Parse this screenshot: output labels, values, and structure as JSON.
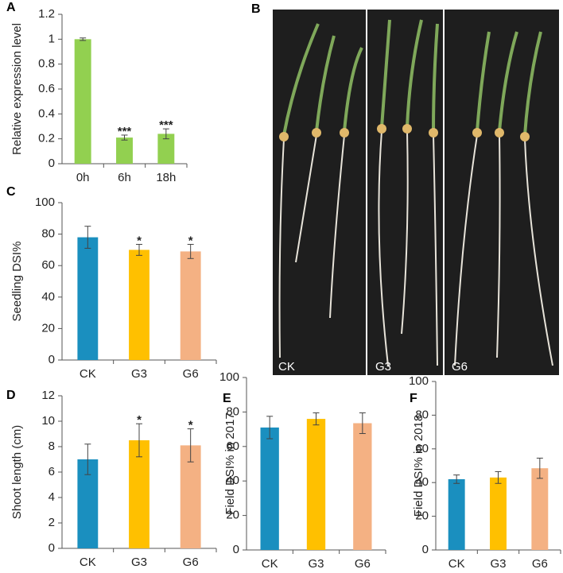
{
  "chart_data": [
    {
      "type": "bar",
      "panel": "A",
      "ylabel": "Relative expression level",
      "categories": [
        "0h",
        "6h",
        "18h"
      ],
      "values": [
        1.0,
        0.21,
        0.24
      ],
      "errors": [
        0.01,
        0.02,
        0.04
      ],
      "colors": [
        "#92d050",
        "#92d050",
        "#92d050"
      ],
      "annotations": [
        null,
        "***",
        "***"
      ],
      "ylim": [
        0,
        1.2
      ],
      "yticks": [
        0,
        0.2,
        0.4,
        0.6,
        0.8,
        1,
        1.2
      ]
    },
    {
      "type": "bar",
      "panel": "C",
      "ylabel": "Seedling DSI%",
      "categories": [
        "CK",
        "G3",
        "G6"
      ],
      "values": [
        78,
        70,
        69
      ],
      "errors": [
        7,
        3.5,
        4.5
      ],
      "colors": [
        "#1a8fbf",
        "#ffc000",
        "#f4b183"
      ],
      "annotations": [
        null,
        "*",
        "*"
      ],
      "ylim": [
        0,
        100
      ],
      "yticks": [
        0,
        20,
        40,
        60,
        80,
        100
      ]
    },
    {
      "type": "bar",
      "panel": "D",
      "ylabel": "Shoot length (cm)",
      "categories": [
        "CK",
        "G3",
        "G6"
      ],
      "values": [
        7.0,
        8.5,
        8.1
      ],
      "errors": [
        1.2,
        1.3,
        1.3
      ],
      "colors": [
        "#1a8fbf",
        "#ffc000",
        "#f4b183"
      ],
      "annotations": [
        null,
        "*",
        "*"
      ],
      "ylim": [
        0,
        12
      ],
      "yticks": [
        0,
        2,
        4,
        6,
        8,
        10,
        12
      ]
    },
    {
      "type": "bar",
      "panel": "E",
      "ylabel": "Field DSI% in 2017",
      "categories": [
        "CK",
        "G3",
        "G6"
      ],
      "values": [
        71,
        76,
        73.5
      ],
      "errors": [
        6.5,
        3.5,
        6
      ],
      "colors": [
        "#1a8fbf",
        "#ffc000",
        "#f4b183"
      ],
      "annotations": [
        null,
        null,
        null
      ],
      "ylim": [
        0,
        100
      ],
      "yticks": [
        0,
        20,
        40,
        60,
        80,
        100
      ]
    },
    {
      "type": "bar",
      "panel": "F",
      "ylabel": "Field DSI% in 2018",
      "categories": [
        "CK",
        "G3",
        "G6"
      ],
      "values": [
        42,
        43,
        48.5
      ],
      "errors": [
        2.5,
        3.5,
        6
      ],
      "colors": [
        "#1a8fbf",
        "#ffc000",
        "#f4b183"
      ],
      "annotations": [
        null,
        null,
        null
      ],
      "ylim": [
        0,
        100
      ],
      "yticks": [
        0,
        20,
        40,
        60,
        80,
        100
      ]
    }
  ],
  "photo_panel": {
    "panel": "B",
    "labels": [
      "CK",
      "G3",
      "G6"
    ]
  }
}
